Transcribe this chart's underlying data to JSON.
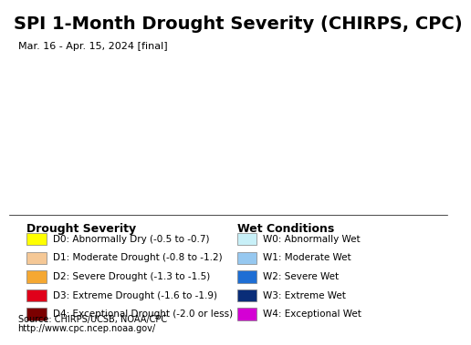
{
  "title": "SPI 1-Month Drought Severity (CHIRPS, CPC)",
  "subtitle": "Mar. 16 - Apr. 15, 2024 [final]",
  "map_bg_color": "#aee8f0",
  "drought_labels": [
    "D0: Abnormally Dry (-0.5 to -0.7)",
    "D1: Moderate Drought (-0.8 to -1.2)",
    "D2: Severe Drought (-1.3 to -1.5)",
    "D3: Extreme Drought (-1.6 to -1.9)",
    "D4: Exceptional Drought (-2.0 or less)"
  ],
  "drought_colors": [
    "#ffff00",
    "#f5c896",
    "#f5a832",
    "#e0001a",
    "#7b0000"
  ],
  "wet_labels": [
    "W0: Abnormally Wet",
    "W1: Moderate Wet",
    "W2: Severe Wet",
    "W3: Extreme Wet",
    "W4: Exceptional Wet"
  ],
  "wet_colors": [
    "#c8f0f8",
    "#96c8f0",
    "#1e6ed4",
    "#0a2d78",
    "#d400d4"
  ],
  "drought_section_title": "Drought Severity",
  "wet_section_title": "Wet Conditions",
  "source_line1": "Source: CHIRPS/UCSB, NOAA/CPC",
  "source_line2": "http://www.cpc.ncep.noaa.gov/",
  "title_fontsize": 14,
  "subtitle_fontsize": 8,
  "legend_title_fontsize": 9,
  "legend_item_fontsize": 7.5,
  "source_fontsize": 7
}
